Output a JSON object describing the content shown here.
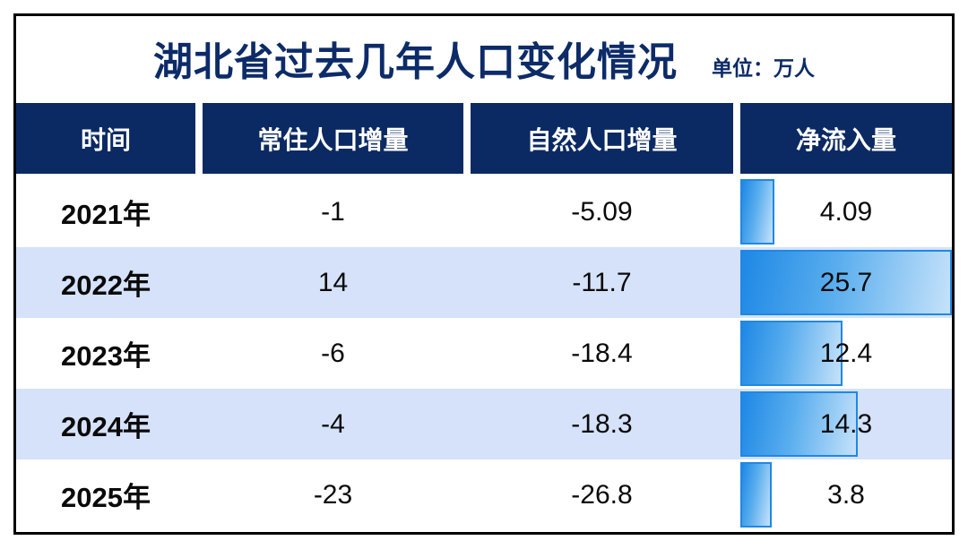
{
  "page": {
    "title": "湖北省过去几年人口变化情况",
    "unit_label": "单位：万人"
  },
  "table": {
    "columns": [
      "时间",
      "常住人口增量",
      "自然人口增量",
      "净流入量"
    ],
    "rows": [
      {
        "year": "2021年",
        "resident": "-1",
        "natural": "-5.09",
        "net": "4.09",
        "net_value": 4.09
      },
      {
        "year": "2022年",
        "resident": "14",
        "natural": "-11.7",
        "net": "25.7",
        "net_value": 25.7
      },
      {
        "year": "2023年",
        "resident": "-6",
        "natural": "-18.4",
        "net": "12.4",
        "net_value": 12.4
      },
      {
        "year": "2024年",
        "resident": "-4",
        "natural": "-18.3",
        "net": "14.3",
        "net_value": 14.3
      },
      {
        "year": "2025年",
        "resident": "-23",
        "natural": "-26.8",
        "net": "3.8",
        "net_value": 3.8
      }
    ],
    "net_max": 25.7
  },
  "colors": {
    "header_bg": "#0b2a63",
    "title_text": "#0c2b68",
    "row_alt_bg": "#d5e2fa",
    "bar_border": "#1f88e4",
    "bar_gradient_start": "#1e88e5",
    "bar_gradient_end": "#c6e2fa",
    "card_border": "#000000"
  },
  "chart_data": {
    "type": "table",
    "title": "湖北省过去几年人口变化情况",
    "unit": "万人",
    "columns": [
      "时间",
      "常住人口增量",
      "自然人口增量",
      "净流入量"
    ],
    "years": [
      "2021年",
      "2022年",
      "2023年",
      "2024年",
      "2025年"
    ],
    "series": [
      {
        "name": "常住人口增量",
        "values": [
          -1,
          14,
          -6,
          -4,
          -23
        ]
      },
      {
        "name": "自然人口增量",
        "values": [
          -5.09,
          -11.7,
          -18.4,
          -18.3,
          -26.8
        ]
      },
      {
        "name": "净流入量",
        "values": [
          4.09,
          25.7,
          12.4,
          14.3,
          3.8
        ]
      }
    ],
    "bar_column": "净流入量",
    "bar_max": 25.7,
    "layout": "embedded horizontal bars in last column, scaled to max value 25.7"
  }
}
